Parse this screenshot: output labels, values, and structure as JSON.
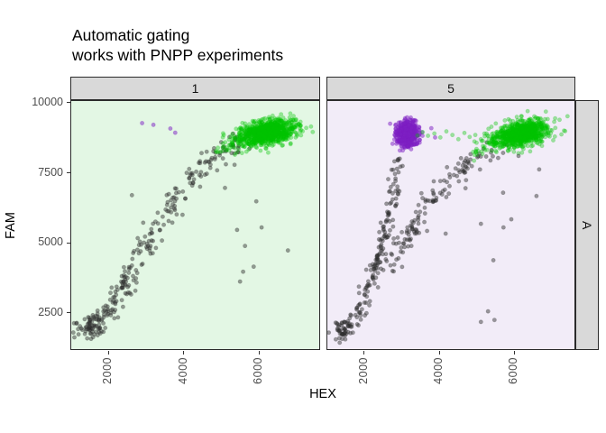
{
  "title": {
    "line1": "Automatic gating",
    "line2": "works with PNPP experiments"
  },
  "axes": {
    "x": "HEX",
    "y": "FAM"
  },
  "right_strip": "A",
  "palette": {
    "green": {
      "fill": "#00c400",
      "alpha": 0.36
    },
    "purple": {
      "fill": "#7d1fc3",
      "alpha": 0.5
    },
    "dark": {
      "fill": "#2e2e2e",
      "alpha": 0.46
    }
  },
  "chart_data": [
    {
      "type": "scatter",
      "facet": "1",
      "bg": "#e3f7e4",
      "xlim": [
        1020,
        7600
      ],
      "ylim": [
        1210,
        10060
      ],
      "x_ticks": [
        2000,
        4000,
        6000
      ],
      "y_ticks": [
        2500,
        5000,
        7500,
        10000
      ],
      "groups": [
        {
          "name": "negative-bottom-blob",
          "kind": "cluster",
          "color": "dark",
          "count": 55,
          "center": [
            1560,
            2000
          ],
          "sd": [
            170,
            240
          ],
          "rho": 0.3
        },
        {
          "name": "negative-trail",
          "kind": "trail",
          "color": "dark",
          "count": 235,
          "jitter": [
            130,
            220
          ],
          "path": [
            [
              1350,
              1700
            ],
            [
              1650,
              2050
            ],
            [
              1950,
              2500
            ],
            [
              2250,
              3100
            ],
            [
              2550,
              3800
            ],
            [
              2850,
              4500
            ],
            [
              3150,
              5200
            ],
            [
              3450,
              5900
            ],
            [
              3750,
              6500
            ],
            [
              4050,
              7050
            ],
            [
              4350,
              7500
            ],
            [
              4650,
              7900
            ],
            [
              4950,
              8200
            ],
            [
              5250,
              8450
            ],
            [
              5550,
              8600
            ]
          ]
        },
        {
          "name": "positive-cluster",
          "kind": "cluster",
          "color": "green",
          "count": 900,
          "center": [
            6250,
            8950
          ],
          "sd": [
            380,
            230
          ],
          "rho": 0.35
        },
        {
          "name": "positive-cluster-tail",
          "kind": "trail",
          "color": "green",
          "count": 55,
          "jitter": [
            200,
            150
          ],
          "path": [
            [
              4950,
              8250
            ],
            [
              5400,
              8550
            ],
            [
              5800,
              8750
            ]
          ]
        },
        {
          "name": "rain-outliers",
          "kind": "points",
          "color": "purple",
          "pts": [
            [
              2900,
              9270
            ],
            [
              3200,
              9210
            ],
            [
              3650,
              9080
            ],
            [
              3780,
              8930
            ]
          ]
        },
        {
          "name": "scatter-outliers",
          "kind": "points",
          "color": "dark",
          "pts": [
            [
              5420,
              5460
            ],
            [
              6070,
              5550
            ],
            [
              5630,
              4890
            ],
            [
              5580,
              3970
            ],
            [
              5860,
              4150
            ],
            [
              5500,
              3620
            ],
            [
              2630,
              6700
            ],
            [
              5100,
              6960
            ],
            [
              5930,
              6480
            ],
            [
              6770,
              4730
            ]
          ]
        }
      ]
    },
    {
      "type": "scatter",
      "facet": "5",
      "bg": "#f2ecf8",
      "xlim": [
        1020,
        7600
      ],
      "ylim": [
        1210,
        10060
      ],
      "x_ticks": [
        2000,
        4000,
        6000
      ],
      "y_ticks": [
        2500,
        5000,
        7500,
        10000
      ],
      "groups": [
        {
          "name": "negative-bottom-blob",
          "kind": "cluster",
          "color": "dark",
          "count": 45,
          "center": [
            1450,
            1880
          ],
          "sd": [
            120,
            210
          ],
          "rho": 0.3
        },
        {
          "name": "negative-left-branch",
          "kind": "trail",
          "color": "dark",
          "count": 160,
          "jitter": [
            95,
            210
          ],
          "path": [
            [
              1350,
              1650
            ],
            [
              1600,
              2000
            ],
            [
              1900,
              2700
            ],
            [
              2150,
              3500
            ],
            [
              2350,
              4300
            ],
            [
              2500,
              5000
            ],
            [
              2620,
              5700
            ],
            [
              2720,
              6400
            ],
            [
              2800,
              7000
            ],
            [
              2870,
              7600
            ],
            [
              2950,
              8100
            ]
          ]
        },
        {
          "name": "negative-right-branch",
          "kind": "trail",
          "color": "dark",
          "count": 135,
          "jitter": [
            130,
            210
          ],
          "path": [
            [
              2650,
              4100
            ],
            [
              2950,
              4800
            ],
            [
              3250,
              5400
            ],
            [
              3550,
              6000
            ],
            [
              3850,
              6500
            ],
            [
              4150,
              7000
            ],
            [
              4450,
              7400
            ],
            [
              4750,
              7800
            ],
            [
              5050,
              8100
            ],
            [
              5350,
              8350
            ],
            [
              5650,
              8500
            ]
          ]
        },
        {
          "name": "purple-cluster",
          "kind": "cluster",
          "color": "purple",
          "count": 460,
          "center": [
            3150,
            8900
          ],
          "sd": [
            150,
            225
          ],
          "rho": 0.0
        },
        {
          "name": "positive-cluster",
          "kind": "cluster",
          "color": "green",
          "count": 900,
          "center": [
            6200,
            8900
          ],
          "sd": [
            360,
            230
          ],
          "rho": 0.35
        },
        {
          "name": "positive-cluster-tail",
          "kind": "trail",
          "color": "green",
          "count": 45,
          "jitter": [
            190,
            150
          ],
          "path": [
            [
              4900,
              8200
            ],
            [
              5350,
              8500
            ],
            [
              5750,
              8700
            ]
          ]
        },
        {
          "name": "green-bridge",
          "kind": "points",
          "color": "green",
          "pts": [
            [
              3420,
              8830
            ],
            [
              3560,
              8950
            ],
            [
              3700,
              8820
            ],
            [
              3870,
              8900
            ],
            [
              4030,
              8760
            ],
            [
              4190,
              8980
            ],
            [
              4350,
              8850
            ],
            [
              4510,
              8700
            ],
            [
              4670,
              8920
            ],
            [
              4810,
              8780
            ],
            [
              4960,
              8850
            ],
            [
              5110,
              8700
            ],
            [
              5260,
              8900
            ]
          ]
        },
        {
          "name": "purple-bridge",
          "kind": "points",
          "color": "purple",
          "pts": [
            [
              3790,
              9090
            ],
            [
              3890,
              8760
            ],
            [
              3300,
              9380
            ]
          ]
        },
        {
          "name": "scatter-outliers",
          "kind": "points",
          "color": "dark",
          "pts": [
            [
              5110,
              5680
            ],
            [
              5710,
              5550
            ],
            [
              5440,
              4380
            ],
            [
              5110,
              2180
            ],
            [
              5470,
              2250
            ],
            [
              5300,
              2560
            ],
            [
              5920,
              5840
            ],
            [
              6110,
              8100
            ],
            [
              6660,
              7620
            ],
            [
              6590,
              6670
            ],
            [
              5700,
              6790
            ],
            [
              4170,
              5330
            ],
            [
              4700,
              6950
            ]
          ]
        }
      ]
    }
  ]
}
